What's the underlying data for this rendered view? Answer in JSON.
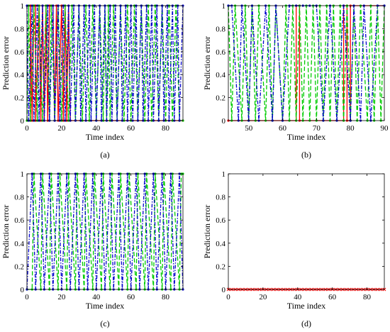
{
  "chart_data": [
    {
      "type": "line",
      "panel_label": "(a)",
      "xlabel": "Time index",
      "ylabel": "Prediction error",
      "xlim": [
        0,
        90
      ],
      "ylim": [
        0,
        1
      ],
      "xticks": [
        0,
        20,
        40,
        60,
        80
      ],
      "yticks": [
        0,
        0.2,
        0.4,
        0.6,
        0.8,
        1
      ],
      "series": [
        {
          "color": "#ff0000",
          "style": "solid",
          "x": [
            0,
            2,
            2,
            3,
            4,
            5,
            5,
            7,
            8,
            9,
            10,
            11,
            12,
            13,
            15,
            16,
            17,
            18,
            20,
            21,
            22,
            23,
            24,
            25,
            90
          ],
          "values": [
            0,
            0,
            1,
            0,
            1,
            1,
            0,
            1,
            0,
            1,
            0,
            1,
            0,
            1,
            1,
            0,
            1,
            0,
            1,
            0,
            1,
            0,
            1,
            0,
            0
          ]
        },
        {
          "color": "#00cc00",
          "style": "dashed",
          "x": [
            0,
            1,
            2,
            4,
            6,
            7,
            9,
            11,
            13,
            14,
            16,
            18,
            20,
            22,
            24,
            26,
            28,
            30,
            32,
            34,
            36,
            38,
            40,
            42,
            44,
            45,
            46,
            47,
            48,
            50,
            52,
            54,
            56,
            58,
            60,
            62,
            64,
            66,
            68,
            70,
            72,
            74,
            76,
            78,
            80,
            82,
            84,
            86,
            88,
            90
          ],
          "values": [
            0,
            1,
            0,
            1,
            0,
            1,
            0,
            1,
            0,
            1,
            0,
            1,
            0,
            1,
            0,
            1,
            0,
            1,
            0,
            1,
            0,
            1,
            0,
            1,
            0,
            1,
            0,
            1,
            0,
            1,
            0,
            1,
            0,
            1,
            0,
            1,
            0,
            1,
            0,
            1,
            0,
            1,
            0,
            1,
            0,
            1,
            0,
            1,
            0,
            0
          ]
        },
        {
          "color": "#0000cc",
          "style": "dashdot",
          "x": [
            0,
            1,
            3,
            4,
            6,
            7,
            9,
            10,
            12,
            13,
            15,
            16,
            18,
            19,
            21,
            22,
            24,
            25,
            27,
            28,
            30,
            31,
            33,
            34,
            36,
            37,
            39,
            40,
            42,
            43,
            45,
            46,
            48,
            49,
            51,
            52,
            54,
            55,
            57,
            58,
            60,
            61,
            63,
            64,
            66,
            67,
            69,
            70,
            72,
            73,
            75,
            76,
            78,
            79,
            81,
            82,
            84,
            85,
            87,
            88,
            90
          ],
          "values": [
            1,
            0,
            1,
            0,
            1,
            0,
            1,
            0,
            1,
            0,
            1,
            0,
            1,
            0,
            1,
            0,
            1,
            0,
            1,
            0,
            1,
            0,
            1,
            0,
            1,
            0,
            1,
            0,
            1,
            0,
            1,
            0,
            1,
            0,
            1,
            0,
            1,
            0,
            1,
            0,
            1,
            0,
            1,
            0,
            1,
            0,
            1,
            0,
            1,
            0,
            1,
            0,
            1,
            0,
            1,
            0,
            1,
            0,
            1,
            0,
            1
          ]
        }
      ]
    },
    {
      "type": "line",
      "panel_label": "(b)",
      "xlabel": "Time index",
      "ylabel": "Prediction error",
      "xlim": [
        44,
        90
      ],
      "ylim": [
        0,
        1
      ],
      "xticks": [
        50,
        60,
        70,
        80,
        90
      ],
      "yticks": [
        0,
        0.2,
        0.4,
        0.6,
        0.8,
        1
      ],
      "series": [
        {
          "color": "#ff0000",
          "style": "solid",
          "x": [
            44,
            64,
            64,
            65,
            65,
            78,
            78,
            79,
            79,
            80,
            80,
            90
          ],
          "values": [
            0,
            0,
            1,
            1,
            0,
            0,
            1,
            1,
            0,
            0,
            1,
            1
          ]
        },
        {
          "color": "#00cc00",
          "style": "dashed",
          "x": [
            44,
            45,
            46,
            48,
            49,
            50,
            51,
            52,
            53,
            55,
            56,
            57,
            58,
            60,
            61,
            62,
            63,
            64,
            65,
            66,
            67,
            68,
            69,
            70,
            71,
            72,
            73,
            74,
            75,
            76,
            77,
            78,
            79,
            80,
            81,
            82,
            83,
            85,
            86,
            87,
            88,
            89,
            90
          ],
          "values": [
            1,
            0,
            1,
            0,
            1,
            0,
            1,
            0,
            1,
            0,
            1,
            0,
            1,
            0,
            1,
            0,
            1,
            0,
            1,
            0,
            1,
            0,
            1,
            0,
            1,
            0,
            1,
            0,
            1,
            0,
            1,
            0,
            1,
            0,
            1,
            0,
            1,
            0,
            1,
            0,
            1,
            0,
            1
          ]
        },
        {
          "color": "#0000cc",
          "style": "dashdot",
          "x": [
            44,
            45,
            47,
            48,
            50,
            51,
            53,
            55,
            57,
            58,
            60,
            62,
            64,
            66,
            68,
            70,
            72,
            74,
            76,
            78,
            80,
            81,
            83,
            84,
            86,
            88,
            90
          ],
          "values": [
            1,
            1,
            0,
            1,
            0,
            1,
            0,
            1,
            0,
            1,
            0,
            1,
            1,
            1,
            1,
            1,
            0,
            1,
            0,
            1,
            0,
            1,
            0,
            1,
            0,
            1,
            1
          ]
        }
      ]
    },
    {
      "type": "line",
      "panel_label": "(c)",
      "xlabel": "Time index",
      "ylabel": "Prediction error",
      "xlim": [
        0,
        90
      ],
      "ylim": [
        0,
        1
      ],
      "xticks": [
        0,
        20,
        40,
        60,
        80
      ],
      "yticks": [
        0,
        0.2,
        0.4,
        0.6,
        0.8,
        1
      ],
      "series": [
        {
          "color": "#00cc00",
          "style": "dashed",
          "x": [
            0,
            3,
            4,
            8,
            9,
            13,
            14,
            18,
            19,
            23,
            24,
            28,
            29,
            33,
            34,
            38,
            39,
            43,
            44,
            48,
            49,
            53,
            54,
            58,
            59,
            63,
            64,
            68,
            69,
            73,
            74,
            78,
            79,
            83,
            84,
            88,
            89,
            90
          ],
          "values": [
            0,
            0,
            1,
            0,
            1,
            0,
            1,
            0,
            1,
            0,
            1,
            0,
            1,
            0,
            1,
            0,
            1,
            0,
            1,
            0,
            1,
            0,
            1,
            0,
            1,
            0,
            1,
            0,
            1,
            0,
            1,
            0,
            1,
            0,
            1,
            0,
            1,
            1
          ]
        },
        {
          "color": "#0000cc",
          "style": "dashdot",
          "x": [
            0,
            3,
            5,
            8,
            10,
            13,
            15,
            18,
            20,
            23,
            25,
            28,
            30,
            33,
            35,
            38,
            40,
            43,
            45,
            48,
            50,
            53,
            55,
            58,
            60,
            63,
            65,
            68,
            70,
            73,
            75,
            78,
            80,
            83,
            85,
            88,
            90
          ],
          "values": [
            0,
            1,
            0,
            1,
            0,
            1,
            0,
            1,
            0,
            1,
            0,
            1,
            0,
            1,
            0,
            1,
            0,
            1,
            0,
            1,
            0,
            1,
            0,
            1,
            0,
            1,
            0,
            1,
            0,
            1,
            0,
            1,
            0,
            1,
            0,
            1,
            0
          ]
        }
      ]
    },
    {
      "type": "line",
      "panel_label": "(d)",
      "xlabel": "Time index",
      "ylabel": "Prediction error",
      "xlim": [
        0,
        90
      ],
      "ylim": [
        0,
        1
      ],
      "xticks": [
        0,
        20,
        40,
        60,
        80
      ],
      "yticks": [
        0,
        0.2,
        0.4,
        0.6,
        0.8,
        1
      ],
      "series": [
        {
          "color": "#ff0000",
          "style": "solid",
          "marker": "x",
          "x": [
            0,
            90
          ],
          "values": [
            0,
            0
          ]
        }
      ]
    }
  ]
}
